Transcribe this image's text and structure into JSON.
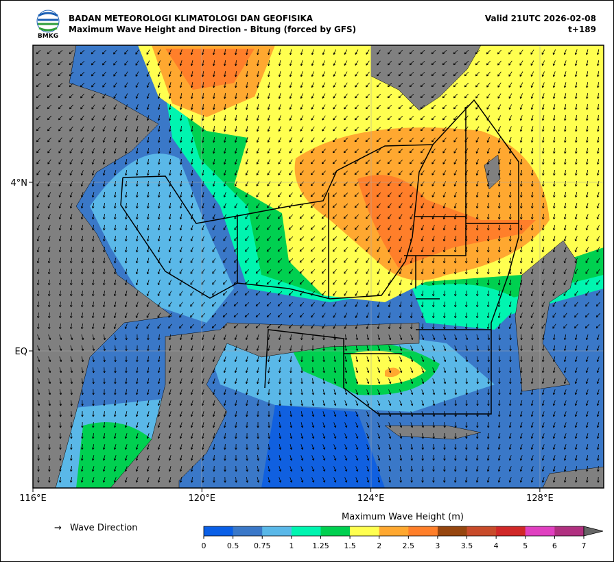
{
  "header": {
    "logo_text": "BMKG",
    "agency": "BADAN METEOROLOGI KLIMATOLOGI DAN GEOFISIKA",
    "title": "Maximum Wave Height and Direction - Bitung (forced by GFS)",
    "valid": "Valid 21UTC 2026-02-08",
    "lead": "t+189"
  },
  "map": {
    "lat_labels": [
      "4°N",
      "EQ"
    ],
    "lon_labels": [
      "116°E",
      "120°E",
      "124°E",
      "128°E"
    ]
  },
  "legend": {
    "arrow": "→",
    "label": "Wave Direction"
  },
  "colorbar": {
    "title": "Maximum Wave Height (m)",
    "ticks": [
      0,
      0.5,
      0.75,
      1,
      1.25,
      1.5,
      2,
      2.5,
      3,
      3.5,
      4,
      5,
      6,
      7
    ],
    "colors": [
      "#0a5fe6",
      "#3a78c8",
      "#5ab8e8",
      "#00f5b0",
      "#00d050",
      "#ffff50",
      "#ffa830",
      "#ff7f2a",
      "#96460f",
      "#c84b2a",
      "#d02828",
      "#e040c0",
      "#b03080"
    ],
    "extend_color": "#666666"
  }
}
